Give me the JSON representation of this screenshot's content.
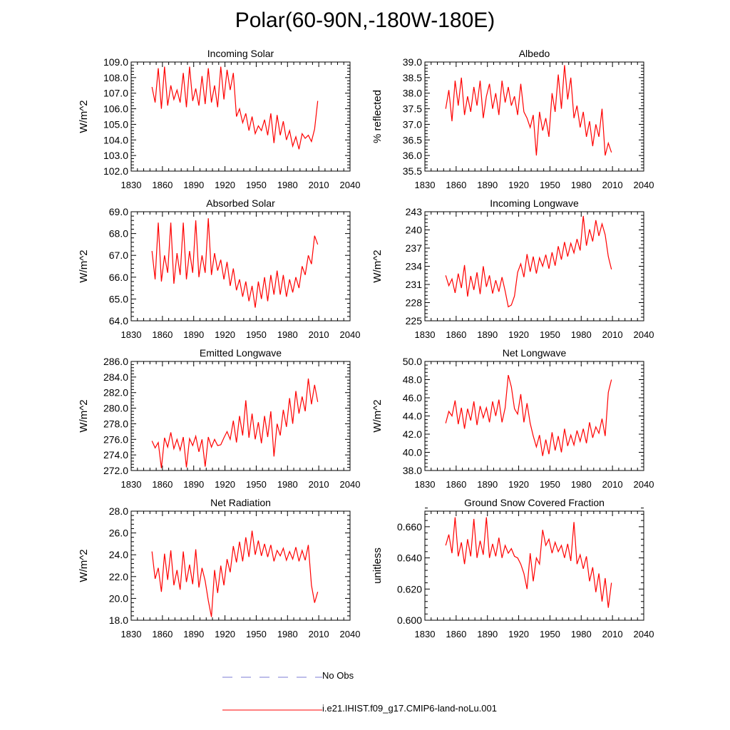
{
  "page": {
    "title": "Polar(60-90N,-180W-180E)"
  },
  "legend": {
    "items": [
      {
        "label": "No Obs",
        "color": "#7b7bd6",
        "dashed": true
      },
      {
        "label": "i.e21.IHIST.f09_g17.CMIP6-land-noLu.001",
        "color": "#ff0000",
        "dashed": false
      }
    ]
  },
  "chart_data": [
    {
      "type": "line",
      "title": "Incoming Solar",
      "ylabel": "W/m^2",
      "xlim": [
        1830,
        2040
      ],
      "ylim": [
        102.0,
        109.0
      ],
      "xticks": [
        1830,
        1860,
        1890,
        1920,
        1950,
        1980,
        2010,
        2040
      ],
      "yticks": [
        "102.0",
        "103.0",
        "104.0",
        "105.0",
        "106.0",
        "107.0",
        "108.0",
        "109.0"
      ],
      "x_start": 1850,
      "x_step": 3,
      "series": [
        {
          "color": "#ff0000",
          "values": [
            107.4,
            106.4,
            108.6,
            106.0,
            108.7,
            106.2,
            107.5,
            106.6,
            107.2,
            106.4,
            108.3,
            106.1,
            108.7,
            106.5,
            107.3,
            106.2,
            108.1,
            106.3,
            108.6,
            106.4,
            107.5,
            106.1,
            108.7,
            106.6,
            108.5,
            107.2,
            108.3,
            105.5,
            106.0,
            105.1,
            105.7,
            104.6,
            105.5,
            104.4,
            104.9,
            104.6,
            105.3,
            104.3,
            105.7,
            103.8,
            105.6,
            104.3,
            105.2,
            104.0,
            104.6,
            103.6,
            104.2,
            103.4,
            104.4,
            104.1,
            104.3,
            103.9,
            104.7,
            106.5
          ]
        }
      ]
    },
    {
      "type": "line",
      "title": "Albedo",
      "ylabel": "% reflected",
      "xlim": [
        1830,
        2040
      ],
      "ylim": [
        35.5,
        39.0
      ],
      "xticks": [
        1830,
        1860,
        1890,
        1920,
        1950,
        1980,
        2010,
        2040
      ],
      "yticks": [
        "35.5",
        "36.0",
        "36.5",
        "37.0",
        "37.5",
        "38.0",
        "38.5",
        "39.0"
      ],
      "x_start": 1850,
      "x_step": 3,
      "series": [
        {
          "color": "#ff0000",
          "values": [
            37.5,
            38.1,
            37.1,
            38.4,
            37.6,
            38.5,
            37.3,
            37.9,
            37.4,
            38.2,
            37.6,
            38.4,
            37.2,
            37.9,
            38.3,
            37.5,
            38.0,
            37.3,
            38.4,
            37.7,
            38.2,
            37.6,
            37.9,
            37.3,
            38.3,
            37.4,
            37.2,
            36.9,
            37.3,
            36.0,
            37.4,
            36.8,
            37.2,
            36.6,
            38.0,
            37.4,
            38.6,
            37.5,
            38.9,
            37.8,
            38.5,
            37.2,
            37.6,
            36.9,
            37.4,
            36.6,
            37.1,
            36.3,
            37.0,
            36.6,
            37.5,
            36.0,
            36.4,
            36.1
          ]
        }
      ]
    },
    {
      "type": "line",
      "title": "Absorbed Solar",
      "ylabel": "W/m^2",
      "xlim": [
        1830,
        2040
      ],
      "ylim": [
        64.0,
        69.0
      ],
      "xticks": [
        1830,
        1860,
        1890,
        1920,
        1950,
        1980,
        2010,
        2040
      ],
      "yticks": [
        "64.0",
        "65.0",
        "66.0",
        "67.0",
        "68.0",
        "69.0"
      ],
      "x_start": 1850,
      "x_step": 3,
      "series": [
        {
          "color": "#ff0000",
          "values": [
            67.2,
            65.9,
            68.5,
            65.8,
            67.0,
            66.2,
            68.5,
            65.7,
            67.1,
            66.1,
            68.5,
            65.9,
            67.2,
            66.2,
            68.6,
            66.0,
            67.0,
            66.2,
            68.7,
            66.1,
            67.1,
            66.3,
            66.8,
            65.9,
            66.7,
            65.6,
            66.4,
            65.4,
            65.9,
            65.1,
            65.8,
            64.9,
            65.6,
            64.6,
            65.8,
            65.0,
            66.0,
            64.9,
            66.1,
            65.2,
            66.3,
            65.2,
            66.1,
            65.1,
            65.9,
            65.3,
            66.0,
            65.5,
            66.5,
            66.1,
            67.0,
            66.6,
            67.9,
            67.5
          ]
        }
      ]
    },
    {
      "type": "line",
      "title": "Incoming Longwave",
      "ylabel": "W/m^2",
      "xlim": [
        1830,
        2040
      ],
      "ylim": [
        225,
        243
      ],
      "xticks": [
        1830,
        1860,
        1890,
        1920,
        1950,
        1980,
        2010,
        2040
      ],
      "yticks": [
        "225",
        "228",
        "231",
        "234",
        "237",
        "240",
        "243"
      ],
      "x_start": 1850,
      "x_step": 3,
      "series": [
        {
          "color": "#ff0000",
          "values": [
            232.5,
            230.8,
            231.9,
            229.6,
            232.8,
            230.4,
            234.2,
            229.0,
            232.4,
            230.1,
            233.0,
            229.4,
            234.0,
            230.6,
            232.5,
            229.5,
            231.7,
            229.8,
            232.2,
            229.9,
            227.3,
            227.6,
            229.1,
            233.0,
            234.4,
            232.2,
            236.0,
            233.1,
            235.6,
            232.8,
            235.4,
            234.0,
            235.9,
            233.6,
            236.3,
            234.1,
            237.3,
            235.1,
            238.0,
            235.6,
            237.8,
            236.2,
            238.5,
            236.6,
            242.3,
            237.4,
            240.1,
            238.1,
            241.6,
            239.0,
            241.0,
            239.2,
            235.6,
            233.5
          ]
        }
      ]
    },
    {
      "type": "line",
      "title": "Emitted Longwave",
      "ylabel": "W/m^2",
      "xlim": [
        1830,
        2040
      ],
      "ylim": [
        272.0,
        286.0
      ],
      "xticks": [
        1830,
        1860,
        1890,
        1920,
        1950,
        1980,
        2010,
        2040
      ],
      "yticks": [
        "272.0",
        "274.0",
        "276.0",
        "278.0",
        "280.0",
        "282.0",
        "284.0",
        "286.0"
      ],
      "x_start": 1850,
      "x_step": 3,
      "series": [
        {
          "color": "#ff0000",
          "values": [
            275.8,
            274.9,
            275.6,
            272.3,
            276.2,
            275.0,
            276.9,
            274.8,
            276.0,
            274.6,
            276.3,
            272.4,
            276.1,
            275.2,
            276.4,
            274.4,
            276.0,
            272.5,
            276.3,
            275.0,
            276.0,
            275.2,
            275.3,
            276.2,
            277.0,
            276.0,
            278.4,
            275.6,
            279.0,
            276.5,
            281.0,
            276.2,
            279.3,
            276.0,
            278.2,
            275.5,
            279.0,
            276.3,
            279.6,
            273.8,
            278.0,
            276.5,
            279.8,
            277.6,
            281.3,
            278.0,
            282.2,
            279.3,
            281.5,
            279.6,
            283.8,
            280.5,
            283.0,
            280.8
          ]
        }
      ]
    },
    {
      "type": "line",
      "title": "Net Longwave",
      "ylabel": "W/m^2",
      "xlim": [
        1830,
        2040
      ],
      "ylim": [
        38.0,
        50.0
      ],
      "xticks": [
        1830,
        1860,
        1890,
        1920,
        1950,
        1980,
        2010,
        2040
      ],
      "yticks": [
        "38.0",
        "40.0",
        "42.0",
        "44.0",
        "46.0",
        "48.0",
        "50.0"
      ],
      "x_start": 1850,
      "x_step": 3,
      "series": [
        {
          "color": "#ff0000",
          "values": [
            43.2,
            44.5,
            44.0,
            45.7,
            43.1,
            44.9,
            42.6,
            44.8,
            43.5,
            45.6,
            43.0,
            45.1,
            43.8,
            44.9,
            43.3,
            45.6,
            44.0,
            45.8,
            43.3,
            44.9,
            48.5,
            47.2,
            44.8,
            44.2,
            46.4,
            43.3,
            45.4,
            43.2,
            41.8,
            40.6,
            41.9,
            39.6,
            41.4,
            39.8,
            42.2,
            40.2,
            41.8,
            40.0,
            42.6,
            40.7,
            41.9,
            40.8,
            42.4,
            41.2,
            42.6,
            41.0,
            43.3,
            41.6,
            42.8,
            42.1,
            43.7,
            41.8,
            46.6,
            48.0
          ]
        }
      ]
    },
    {
      "type": "line",
      "title": "Net Radiation",
      "ylabel": "W/m^2",
      "xlim": [
        1830,
        2040
      ],
      "ylim": [
        18.0,
        28.0
      ],
      "xticks": [
        1830,
        1860,
        1890,
        1920,
        1950,
        1980,
        2010,
        2040
      ],
      "yticks": [
        "18.0",
        "20.0",
        "22.0",
        "24.0",
        "26.0",
        "28.0"
      ],
      "x_start": 1850,
      "x_step": 3,
      "series": [
        {
          "color": "#ff0000",
          "values": [
            24.3,
            21.8,
            22.8,
            20.6,
            24.1,
            21.7,
            24.4,
            21.2,
            22.6,
            20.8,
            24.3,
            21.5,
            23.1,
            21.3,
            24.5,
            21.0,
            22.8,
            21.6,
            19.8,
            18.3,
            22.6,
            20.5,
            23.0,
            21.2,
            23.6,
            22.4,
            24.8,
            23.3,
            25.2,
            23.4,
            25.6,
            23.8,
            26.2,
            24.0,
            25.3,
            23.9,
            25.0,
            23.8,
            24.9,
            23.4,
            24.4,
            23.9,
            24.6,
            23.5,
            24.3,
            23.6,
            24.7,
            23.4,
            24.4,
            23.5,
            24.9,
            21.2,
            19.6,
            20.6
          ]
        }
      ]
    },
    {
      "type": "line",
      "title": "Ground Snow Covered Fraction",
      "ylabel": "unitless",
      "xlim": [
        1830,
        2040
      ],
      "ylim": [
        0.6,
        0.67
      ],
      "xticks": [
        1830,
        1860,
        1890,
        1920,
        1950,
        1980,
        2010,
        2040
      ],
      "yticks": [
        "0.600",
        "0.620",
        "0.640",
        "0.660"
      ],
      "x_start": 1850,
      "x_step": 3,
      "series": [
        {
          "color": "#ff0000",
          "values": [
            0.648,
            0.655,
            0.643,
            0.666,
            0.641,
            0.65,
            0.636,
            0.652,
            0.641,
            0.665,
            0.64,
            0.651,
            0.642,
            0.666,
            0.64,
            0.649,
            0.641,
            0.653,
            0.64,
            0.648,
            0.643,
            0.646,
            0.641,
            0.64,
            0.636,
            0.63,
            0.62,
            0.643,
            0.625,
            0.64,
            0.636,
            0.658,
            0.648,
            0.652,
            0.643,
            0.65,
            0.644,
            0.648,
            0.64,
            0.649,
            0.638,
            0.663,
            0.636,
            0.642,
            0.633,
            0.641,
            0.625,
            0.634,
            0.618,
            0.63,
            0.612,
            0.627,
            0.608,
            0.624
          ]
        }
      ]
    }
  ]
}
